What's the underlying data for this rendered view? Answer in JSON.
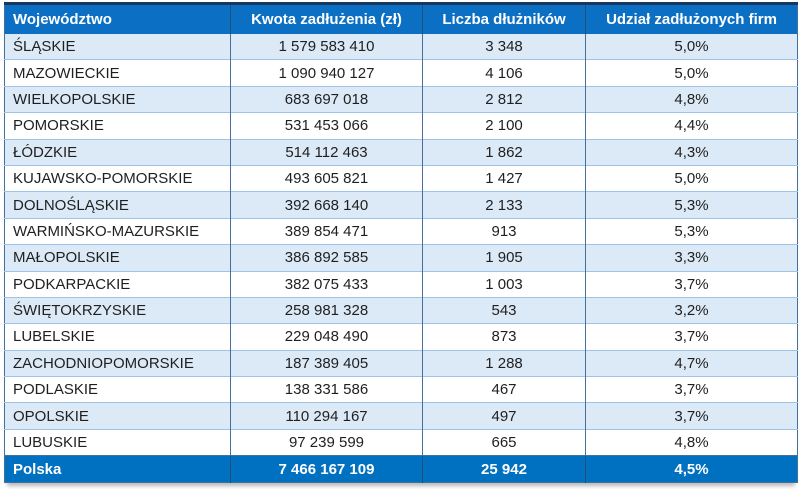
{
  "chart_data": {
    "type": "table",
    "columns": [
      "Województwo",
      "Kwota zadłużenia (zł)",
      "Liczba dłużników",
      "Udział zadłużonych firm"
    ],
    "rows": [
      [
        "ŚLĄSKIE",
        "1 579 583 410",
        "3 348",
        "5,0%"
      ],
      [
        "MAZOWIECKIE",
        "1 090 940 127",
        "4 106",
        "5,0%"
      ],
      [
        "WIELKOPOLSKIE",
        "683 697 018",
        "2 812",
        "4,8%"
      ],
      [
        "POMORSKIE",
        "531 453 066",
        "2 100",
        "4,4%"
      ],
      [
        "ŁÓDZKIE",
        "514 112 463",
        "1 862",
        "4,3%"
      ],
      [
        "KUJAWSKO-POMORSKIE",
        "493 605 821",
        "1 427",
        "5,0%"
      ],
      [
        "DOLNOŚLĄSKIE",
        "392 668 140",
        "2 133",
        "5,3%"
      ],
      [
        "WARMIŃSKO-MAZURSKIE",
        "389 854 471",
        "913",
        "5,3%"
      ],
      [
        "MAŁOPOLSKIE",
        "386 892 585",
        "1 905",
        "3,3%"
      ],
      [
        "PODKARPACKIE",
        "382 075 433",
        "1 003",
        "3,7%"
      ],
      [
        "ŚWIĘTOKRZYSKIE",
        "258 981 328",
        "543",
        "3,2%"
      ],
      [
        "LUBELSKIE",
        "229 048 490",
        "873",
        "3,7%"
      ],
      [
        "ZACHODNIOPOMORSKIE",
        "187 389 405",
        "1 288",
        "4,7%"
      ],
      [
        "PODLASKIE",
        "138 331 586",
        "467",
        "3,7%"
      ],
      [
        "OPOLSKIE",
        "110 294 167",
        "497",
        "3,7%"
      ],
      [
        "LUBUSKIE",
        "97 239 599",
        "665",
        "4,8%"
      ]
    ],
    "total_row": [
      "Polska",
      "7 466 167 109",
      "25 942",
      "4,5%"
    ],
    "layout_hints": {
      "striped_rows": "odd rows shaded",
      "column_align": [
        "left",
        "center",
        "center",
        "center"
      ]
    }
  },
  "colors": {
    "header_bg": "#0B70C4",
    "footer_bg": "#0070C0",
    "header_text": "#FFFFFF",
    "body_text": "#1F1F1F",
    "row_bg": "#FFFFFF",
    "row_alt_bg": "#DCE9F6",
    "grid_vertical": "#41719C",
    "grid_horizontal": "#9DC3E6",
    "header_grid": "#1F4E79",
    "top_border": "#17375E"
  }
}
